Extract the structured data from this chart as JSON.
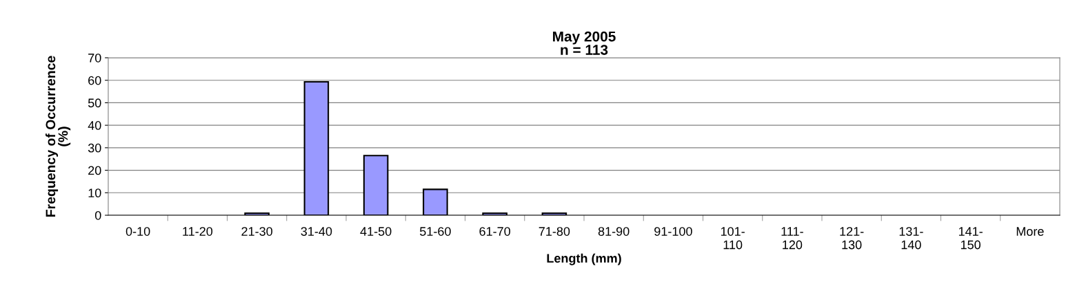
{
  "chart_data": {
    "type": "bar",
    "title": "May 2005\nn = 113",
    "xlabel": "Length (mm)",
    "ylabel": "Frequency of Occurrence\n(%)",
    "categories": [
      "0-10",
      "11-20",
      "21-30",
      "31-40",
      "41-50",
      "51-60",
      "61-70",
      "71-80",
      "81-90",
      "91-100",
      "101-\n110",
      "111-\n120",
      "121-\n130",
      "131-\n140",
      "141-\n150",
      "More"
    ],
    "values": [
      0,
      0,
      0.9,
      59.3,
      26.5,
      11.5,
      0.9,
      0.9,
      0,
      0,
      0,
      0,
      0,
      0,
      0,
      0
    ],
    "color": "#9999ff",
    "ylim": [
      0,
      70
    ],
    "yticks": [
      0,
      10,
      20,
      30,
      40,
      50,
      60,
      70
    ],
    "grid": "y",
    "legend": false
  }
}
